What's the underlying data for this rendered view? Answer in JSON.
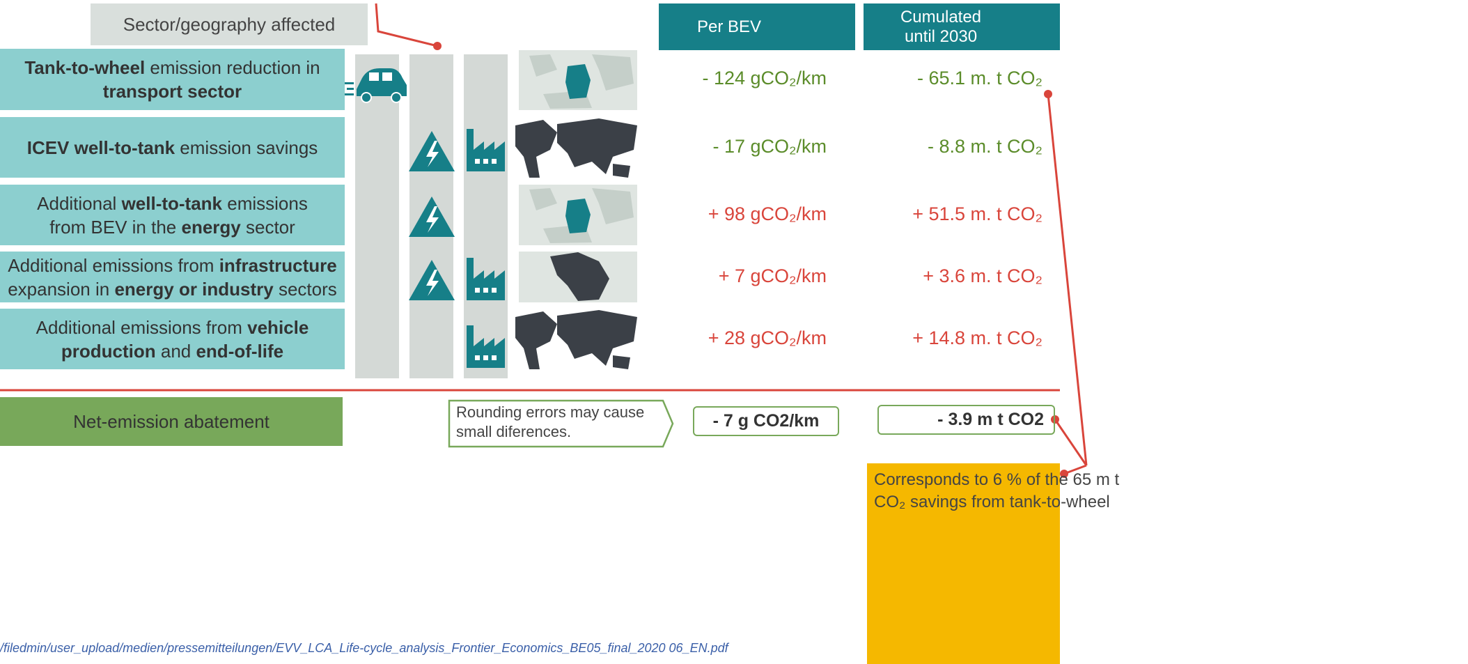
{
  "header": {
    "sector": "Sector/geography affected",
    "per_bev": "Per BEV",
    "cumulated": [
      "Cumulated",
      "until 2030"
    ]
  },
  "rows": [
    {
      "label": [
        [
          {
            "text": "Tank-to-wheel",
            "bold": true
          },
          {
            "text": " emission reduction in"
          }
        ],
        [
          {
            "text": "transport sector",
            "bold": true
          }
        ]
      ],
      "per_bev": "- 124 gCO₂/km",
      "cumulated": "- 65.1 m. t CO₂",
      "color": "#5b8c2a"
    },
    {
      "label": [
        [
          {
            "text": "ICEV well-to-tank",
            "bold": true
          },
          {
            "text": " emission savings"
          }
        ]
      ],
      "per_bev": "- 17 gCO₂/km",
      "cumulated": "- 8.8 m. t CO₂",
      "color": "#5b8c2a"
    },
    {
      "label": [
        [
          {
            "text": "Additional "
          },
          {
            "text": "well-to-tank",
            "bold": true
          },
          {
            "text": " emissions"
          }
        ],
        [
          {
            "text": "from BEV in the "
          },
          {
            "text": "energy",
            "bold": true
          },
          {
            "text": " sector"
          }
        ]
      ],
      "per_bev": "+ 98 gCO₂/km",
      "cumulated": "+ 51.5 m. t CO₂",
      "color": "#d9453b"
    },
    {
      "label": [
        [
          {
            "text": "Additional emissions from "
          },
          {
            "text": "infrastructure",
            "bold": true
          }
        ],
        [
          {
            "text": "expansion in "
          },
          {
            "text": "energy or industry",
            "bold": true
          },
          {
            "text": " sectors"
          }
        ]
      ],
      "per_bev": "+ 7 gCO₂/km",
      "cumulated": "+ 3.6 m. t CO₂",
      "color": "#d9453b"
    },
    {
      "label": [
        [
          {
            "text": "Additional emissions from "
          },
          {
            "text": "vehicle",
            "bold": true
          }
        ],
        [
          {
            "text": "production",
            "bold": true
          },
          {
            "text": " and "
          },
          {
            "text": "end-of-life",
            "bold": true
          }
        ]
      ],
      "per_bev": "+ 28 gCO₂/km",
      "cumulated": "+ 14.8 m. t CO₂",
      "color": "#d9453b"
    }
  ],
  "net": {
    "label": "Net-emission abatement",
    "per_bev": "- 7 g CO2/km",
    "cumulated": "- 3.9 m t CO2"
  },
  "note": [
    "Rounding errors may cause",
    "small diferences."
  ],
  "callout": [
    "Corresponds to 6 % of the 65 m t",
    "CO₂ savings from tank-to-wheel"
  ],
  "footer": "/filedmin/user_upload/medien/pressemitteilungen/EVV_LCA_Life-cycle_analysis_Frontier_Economics_BE05_final_2020 06_EN.pdf"
}
